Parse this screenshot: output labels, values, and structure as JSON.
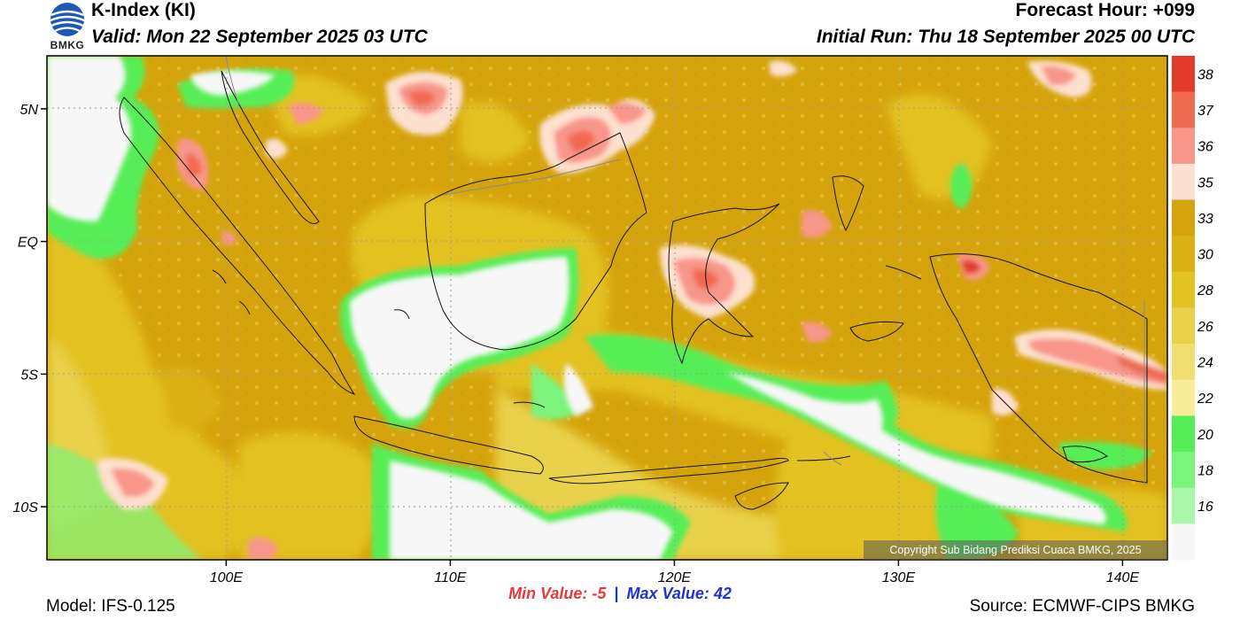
{
  "header": {
    "title": "K-Index (KI)",
    "valid": "Valid: Mon 22 September 2025 03 UTC",
    "forecast_hour": "Forecast Hour: +099",
    "initial_run": "Initial Run: Thu 18 September 2025 00 UTC",
    "logo_text": "BMKG"
  },
  "map": {
    "lat_labels": [
      "5N",
      "EQ",
      "5S",
      "10S"
    ],
    "lon_labels": [
      "100E",
      "110E",
      "120E",
      "130E",
      "140E"
    ],
    "lat_values": [
      5,
      0,
      -5,
      -10
    ],
    "lon_values": [
      100,
      110,
      120,
      130,
      140
    ],
    "extent": {
      "lon": [
        92,
        142
      ],
      "lat": [
        -12,
        7
      ]
    },
    "copyright": "Copyright Sub Bidang Prediksi Cuaca BMKG, 2025"
  },
  "legend": {
    "levels": [
      38,
      37,
      36,
      35,
      33,
      30,
      28,
      26,
      24,
      22,
      20,
      18,
      16
    ],
    "labels": [
      "38",
      "37",
      "36",
      "35",
      "33",
      "30",
      "28",
      "26",
      "24",
      "22",
      "20",
      "18",
      "16"
    ],
    "colors": [
      "#e23b2b",
      "#f06a52",
      "#f8968a",
      "#fde0cf",
      "#d5a40c",
      "#dbb116",
      "#e3c224",
      "#ead14b",
      "#f1e071",
      "#f9ec9b",
      "#56ee56",
      "#7bf47b",
      "#a9f7a9",
      "#f7f7f7"
    ]
  },
  "stats": {
    "min_label": "Min Value:",
    "min_value": "-5",
    "separator": "|",
    "max_label": "Max Value:",
    "max_value": "42"
  },
  "footer": {
    "model": "Model: IFS-0.125",
    "source": "Source: ECMWF-CIPS BMKG"
  }
}
